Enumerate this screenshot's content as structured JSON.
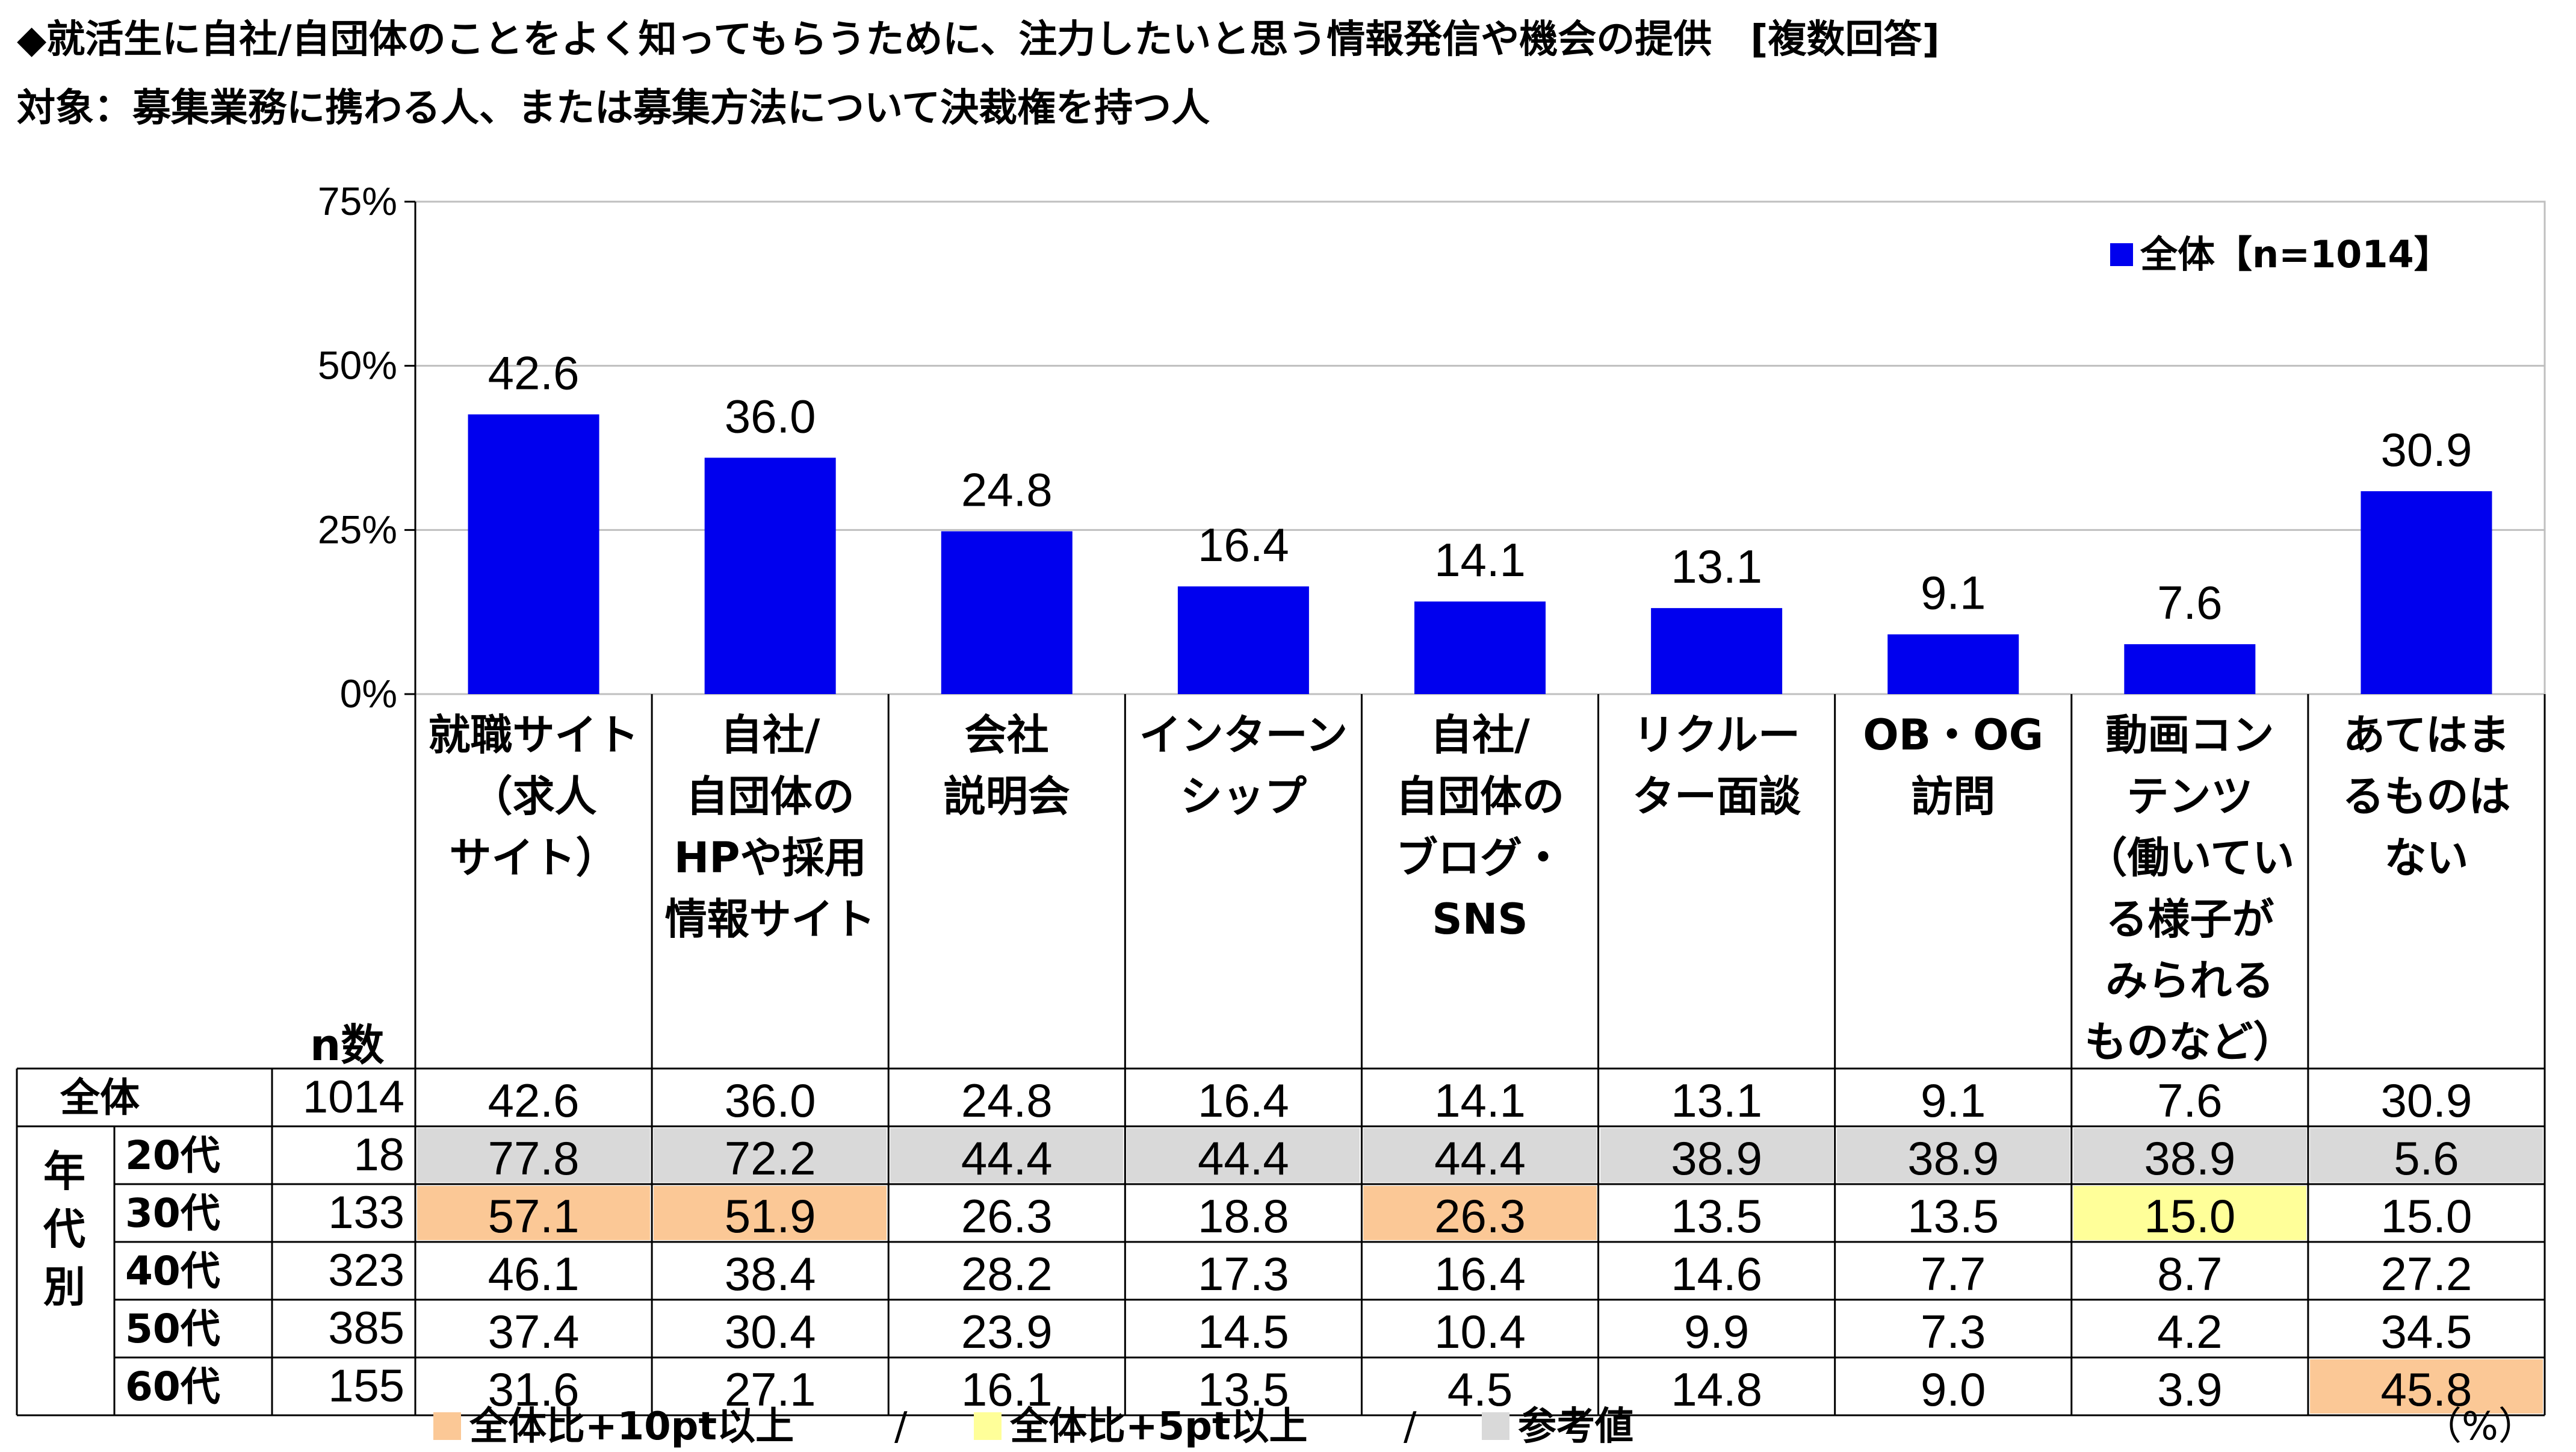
{
  "title": "◆就活生に自社/自団体のことをよく知ってもらうために、注力したいと思う情報発信や機会の提供　[複数回答]",
  "subtitle": "対象：募集業務に携わる人、または募集方法について決裁権を持つ人",
  "colors": {
    "bar": "#0000ee",
    "plus10": "#fbc896",
    "plus5": "#ffff99",
    "reference": "#d9d9d9"
  },
  "chart_data": {
    "type": "bar",
    "categories": [
      "就職サイト\n（求人\nサイト）",
      "自社/\n自団体の\nHPや採用\n情報サイト",
      "会社\n説明会",
      "インターン\nシップ",
      "自社/\n自団体の\nブログ・\nSNS",
      "リクルー\nター面談",
      "OB・OG\n訪問",
      "動画コン\nテンツ\n（働いてい\nる様子が\nみられる\nものなど）",
      "あてはま\nるものは\nない"
    ],
    "series": [
      {
        "name": "全体【n=1014】",
        "values": [
          42.6,
          36.0,
          24.8,
          16.4,
          14.1,
          13.1,
          9.1,
          7.6,
          30.9
        ]
      }
    ],
    "value_labels": [
      "42.6",
      "36.0",
      "24.8",
      "16.4",
      "14.1",
      "13.1",
      "9.1",
      "7.6",
      "30.9"
    ],
    "yticks": [
      "75%",
      "50%",
      "25%",
      "0%"
    ],
    "ylim": [
      0,
      75
    ],
    "legend_position": "top-right",
    "grid": true
  },
  "table": {
    "n_header": "n数",
    "group_label": [
      "年",
      "代",
      "別"
    ],
    "rows": [
      {
        "label": "全体",
        "n": "1014",
        "values": [
          "42.6",
          "36.0",
          "24.8",
          "16.4",
          "14.1",
          "13.1",
          "9.1",
          "7.6",
          "30.9"
        ],
        "highlight": [
          "",
          "",
          "",
          "",
          "",
          "",
          "",
          "",
          ""
        ]
      },
      {
        "label": "20代",
        "n": "18",
        "values": [
          "77.8",
          "72.2",
          "44.4",
          "44.4",
          "44.4",
          "38.9",
          "38.9",
          "38.9",
          "5.6"
        ],
        "highlight": [
          "reference",
          "reference",
          "reference",
          "reference",
          "reference",
          "reference",
          "reference",
          "reference",
          "reference"
        ]
      },
      {
        "label": "30代",
        "n": "133",
        "values": [
          "57.1",
          "51.9",
          "26.3",
          "18.8",
          "26.3",
          "13.5",
          "13.5",
          "15.0",
          "15.0"
        ],
        "highlight": [
          "plus10",
          "plus10",
          "",
          "",
          "plus10",
          "",
          "",
          "plus5",
          ""
        ]
      },
      {
        "label": "40代",
        "n": "323",
        "values": [
          "46.1",
          "38.4",
          "28.2",
          "17.3",
          "16.4",
          "14.6",
          "7.7",
          "8.7",
          "27.2"
        ],
        "highlight": [
          "",
          "",
          "",
          "",
          "",
          "",
          "",
          "",
          ""
        ]
      },
      {
        "label": "50代",
        "n": "385",
        "values": [
          "37.4",
          "30.4",
          "23.9",
          "14.5",
          "10.4",
          "9.9",
          "7.3",
          "4.2",
          "34.5"
        ],
        "highlight": [
          "",
          "",
          "",
          "",
          "",
          "",
          "",
          "",
          ""
        ]
      },
      {
        "label": "60代",
        "n": "155",
        "values": [
          "31.6",
          "27.1",
          "16.1",
          "13.5",
          "4.5",
          "14.8",
          "9.0",
          "3.9",
          "45.8"
        ],
        "highlight": [
          "",
          "",
          "",
          "",
          "",
          "",
          "",
          "",
          "plus10"
        ]
      }
    ]
  },
  "footer": {
    "plus10_label": "全体比+10pt以上",
    "sep": "/",
    "plus5_label": "全体比+5pt以上",
    "reference_label": "参考値",
    "unit": "（%）"
  }
}
